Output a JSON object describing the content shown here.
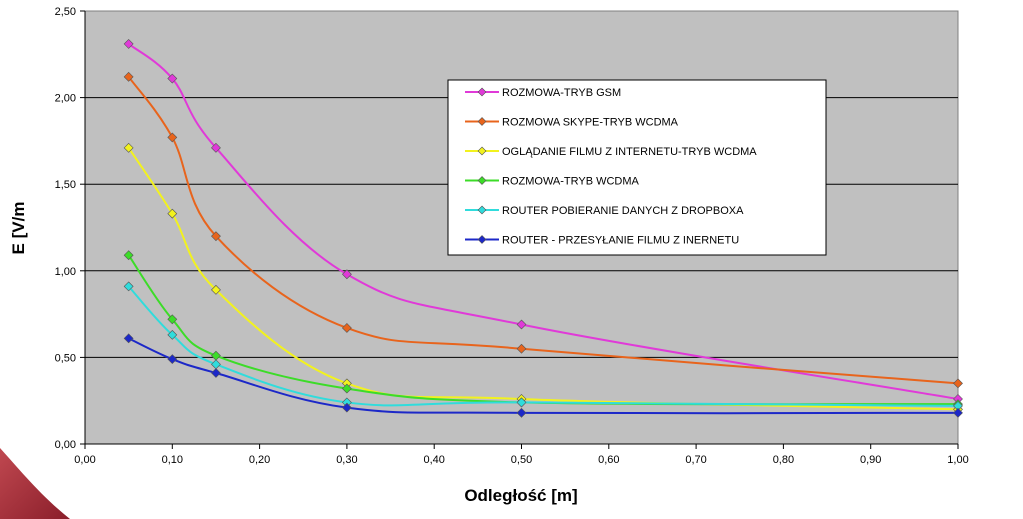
{
  "chart_data": {
    "type": "line",
    "title": "",
    "xlabel": "Odległość [m]",
    "ylabel": "E [V/m",
    "xlim": [
      0,
      1
    ],
    "ylim": [
      0,
      2.5
    ],
    "x_ticks": [
      "0,00",
      "0,10",
      "0,20",
      "0,30",
      "0,40",
      "0,50",
      "0,60",
      "0,70",
      "0,80",
      "0,90",
      "1,00"
    ],
    "y_ticks": [
      "0,00",
      "0,50",
      "1,00",
      "1,50",
      "2,00",
      "2,50"
    ],
    "grid": "horizontal",
    "legend_position": "top-right",
    "plot_background": "#c0c0c0",
    "x": [
      0.05,
      0.1,
      0.15,
      0.3,
      0.5,
      1.0
    ],
    "series": [
      {
        "name": "ROZMOWA-TRYB GSM",
        "color": "#e03ad8",
        "values": [
          2.31,
          2.11,
          1.71,
          0.98,
          0.69,
          0.26
        ]
      },
      {
        "name": "ROZMOWA SKYPE-TRYB WCDMA",
        "color": "#e8641c",
        "values": [
          2.12,
          1.77,
          1.2,
          0.67,
          0.55,
          0.35
        ]
      },
      {
        "name": "OGLĄDANIE FILMU Z INTERNETU-TRYB WCDMA",
        "color": "#f2f21e",
        "values": [
          1.71,
          1.33,
          0.89,
          0.35,
          0.26,
          0.2
        ]
      },
      {
        "name": "ROZMOWA-TRYB WCDMA",
        "color": "#3cdc28",
        "values": [
          1.09,
          0.72,
          0.51,
          0.32,
          0.24,
          0.23
        ]
      },
      {
        "name": "ROUTER POBIERANIE DANYCH Z DROPBOXA",
        "color": "#30dcdc",
        "values": [
          0.91,
          0.63,
          0.46,
          0.24,
          0.24,
          0.22
        ]
      },
      {
        "name": "ROUTER - PRZESYŁANIE FILMU Z INERNETU",
        "color": "#1c28c8",
        "values": [
          0.61,
          0.49,
          0.41,
          0.21,
          0.18,
          0.18
        ]
      }
    ]
  }
}
